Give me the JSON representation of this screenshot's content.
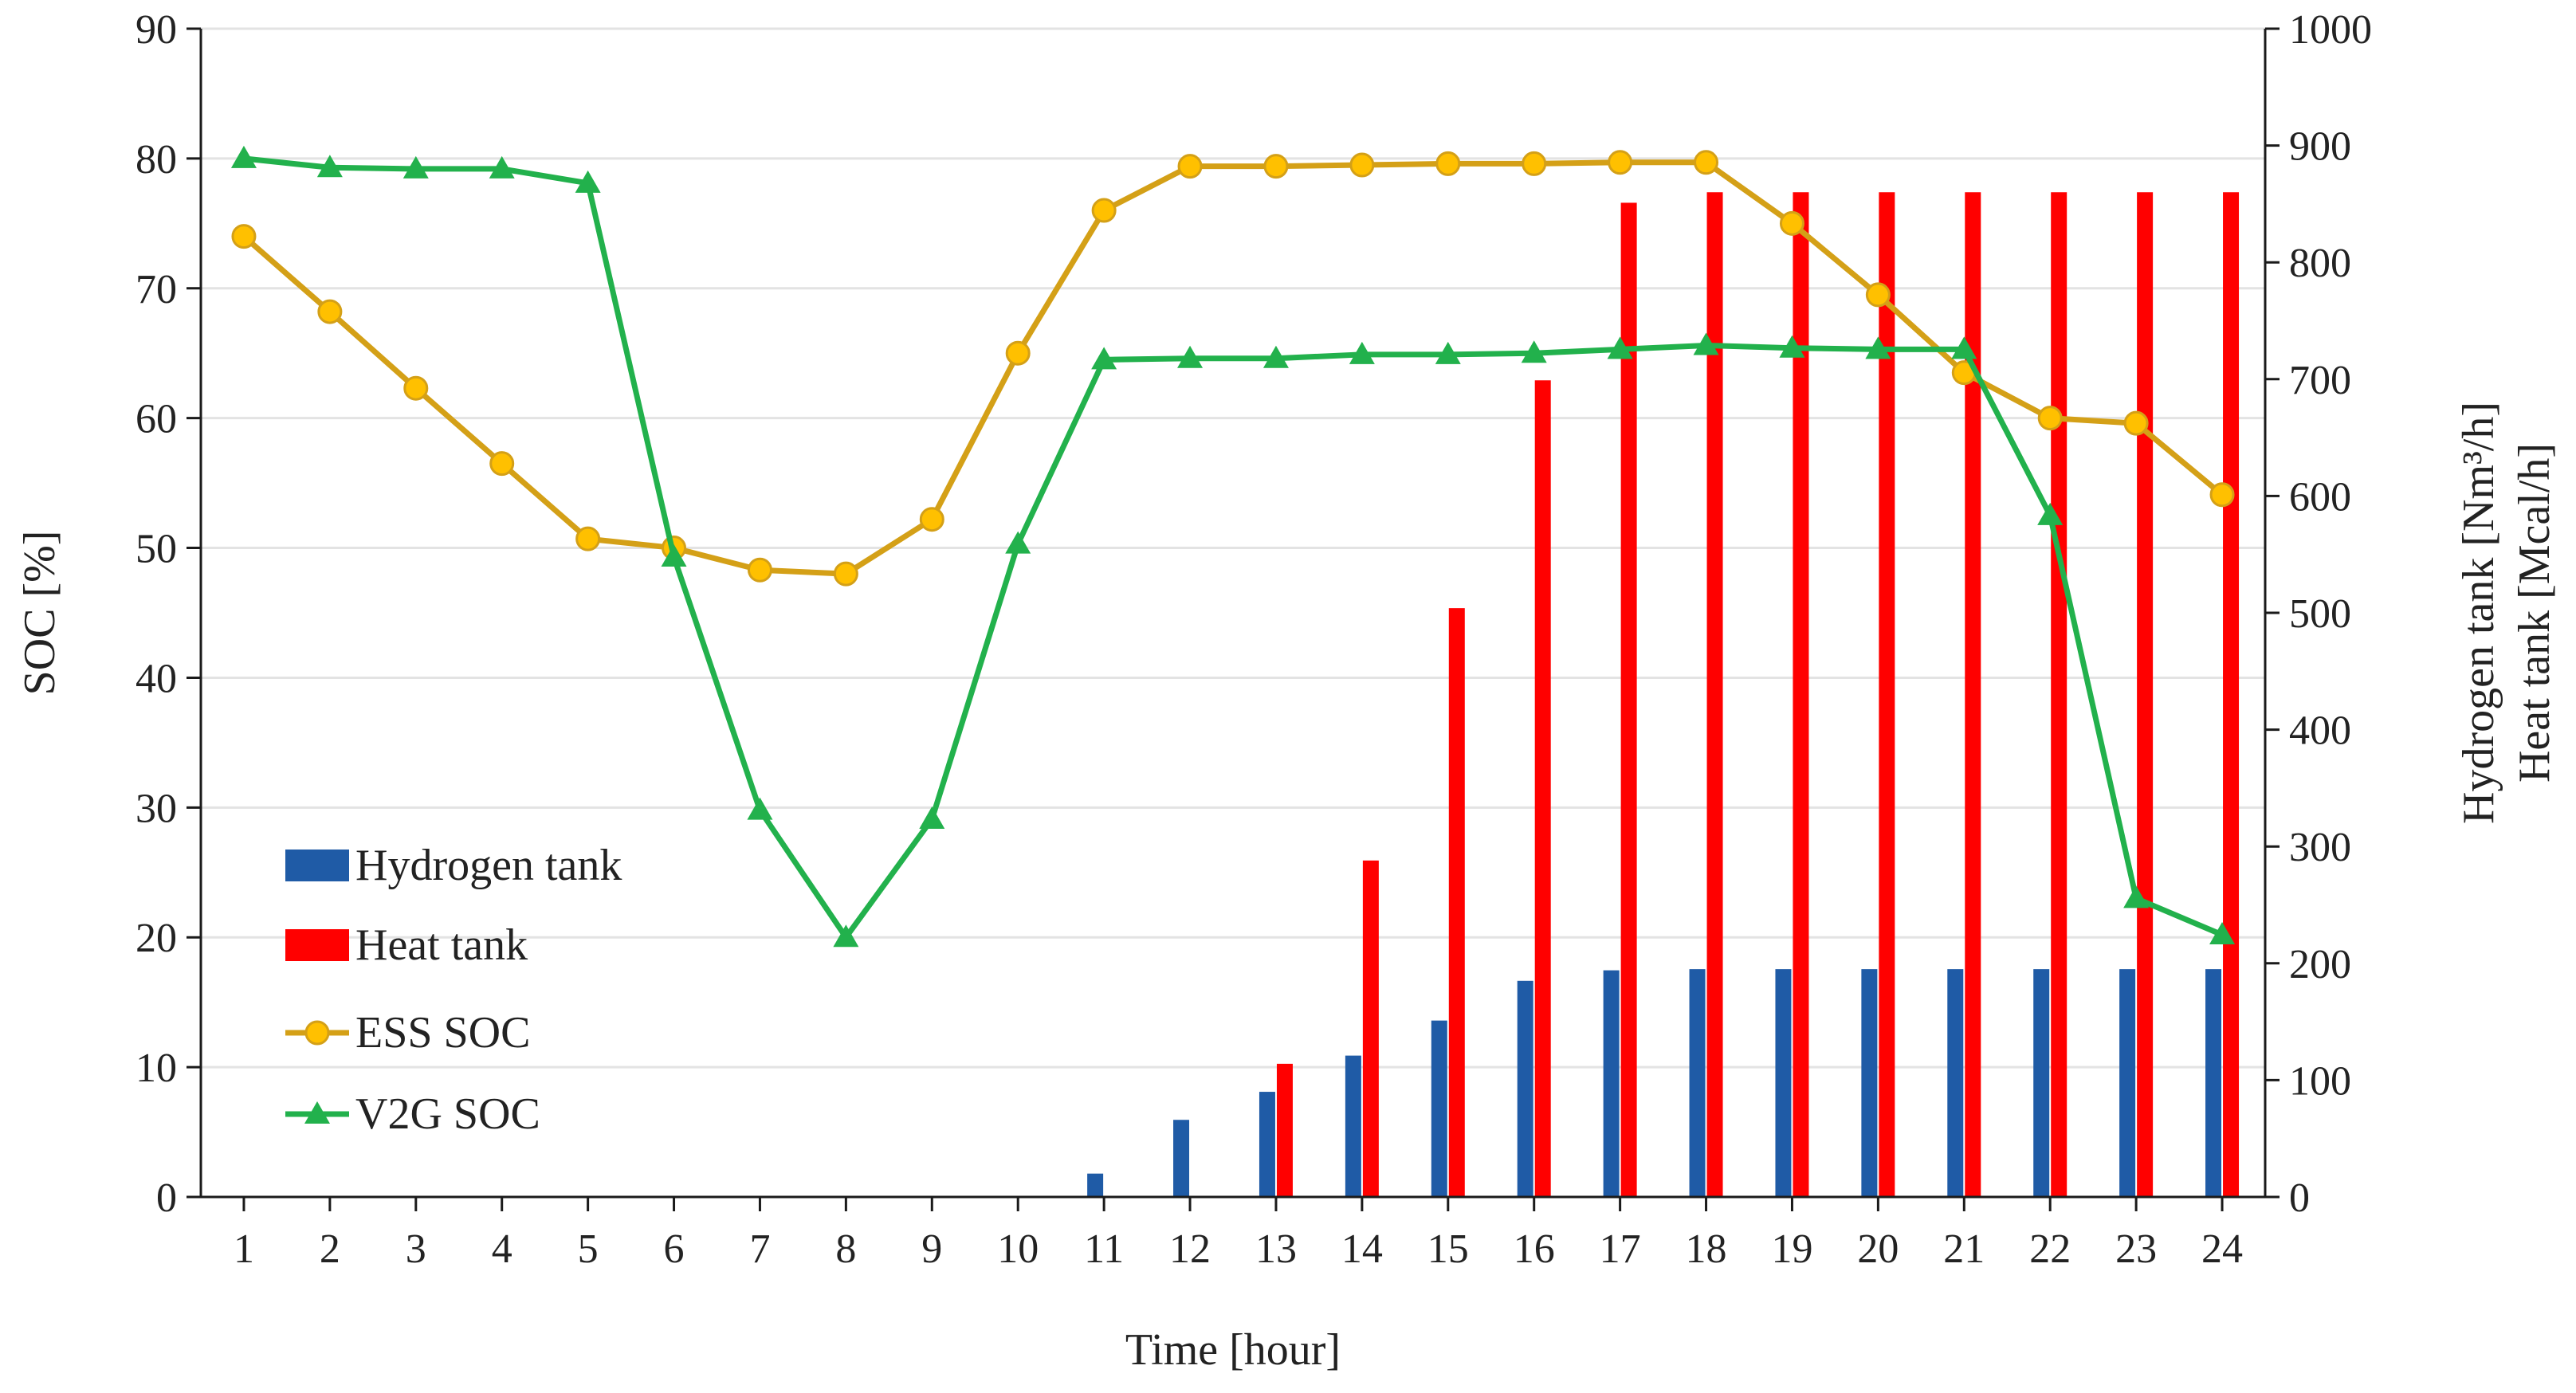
{
  "chart_data": {
    "type": "bar+line",
    "categories": [
      "1",
      "2",
      "3",
      "4",
      "5",
      "6",
      "7",
      "8",
      "9",
      "10",
      "11",
      "12",
      "13",
      "14",
      "15",
      "16",
      "17",
      "18",
      "19",
      "20",
      "21",
      "22",
      "23",
      "24"
    ],
    "xlabel": "Time [hour]",
    "ylabel_left": "SOC [%]",
    "ylabel_right_line1": "Hydrogen tank [Nm³/h]",
    "ylabel_right_line2": "Heat tank [Mcal/h]",
    "ylim_left": [
      0,
      90
    ],
    "yticks_left": [
      "0",
      "10",
      "20",
      "30",
      "40",
      "50",
      "60",
      "70",
      "80",
      "90"
    ],
    "ylim_right": [
      0,
      1000
    ],
    "yticks_right": [
      "0",
      "100",
      "200",
      "300",
      "400",
      "500",
      "600",
      "700",
      "800",
      "900",
      "1000"
    ],
    "grid": true,
    "legend_position": "bottom-left",
    "series": [
      {
        "name": "Hydrogen tank",
        "kind": "bar",
        "axis": "right",
        "color": "#1f5ba6",
        "values": [
          0,
          0,
          0,
          0,
          0,
          0,
          0,
          0,
          0,
          0,
          20,
          66,
          90,
          121,
          151,
          185,
          194,
          195,
          195,
          195,
          195,
          195,
          195,
          195
        ]
      },
      {
        "name": "Heat tank",
        "kind": "bar",
        "axis": "right",
        "color": "#ff0000",
        "values": [
          0,
          0,
          0,
          0,
          0,
          0,
          0,
          0,
          0,
          0,
          0,
          0,
          114,
          288,
          504,
          699,
          851,
          860,
          860,
          860,
          860,
          860,
          860,
          860
        ]
      },
      {
        "name": "ESS SOC",
        "kind": "line",
        "marker": "circle",
        "axis": "left",
        "color": "#d4a017",
        "marker_fill": "#ffc000",
        "values": [
          74,
          68.2,
          62.3,
          56.5,
          50.7,
          50,
          48.3,
          48,
          52.2,
          65,
          76,
          79.4,
          79.4,
          79.5,
          79.6,
          79.6,
          79.7,
          79.7,
          75,
          69.5,
          63.5,
          60,
          59.6,
          54.1
        ]
      },
      {
        "name": "V2G SOC",
        "kind": "line",
        "marker": "triangle",
        "axis": "left",
        "color": "#22b14c",
        "marker_fill": "#22b14c",
        "values": [
          80,
          79.3,
          79.2,
          79.2,
          78.1,
          49.3,
          29.8,
          20,
          29.1,
          50.3,
          64.5,
          64.6,
          64.6,
          64.9,
          64.9,
          65,
          65.3,
          65.6,
          65.4,
          65.3,
          65.3,
          52.5,
          23,
          20.2
        ]
      }
    ]
  }
}
